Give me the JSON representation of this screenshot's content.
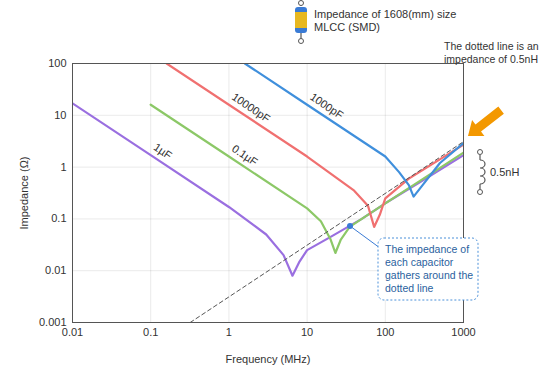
{
  "chart_data": {
    "type": "line",
    "title": "Impedance of 1608(mm) size MLCC (SMD)",
    "xlabel": "Frequency (MHz)",
    "ylabel": "Impedance (Ω)",
    "log": true,
    "grid": true,
    "xlim": [
      0.01,
      1000
    ],
    "ylim": [
      0.001,
      100
    ],
    "xticks": [
      0.01,
      0.1,
      1,
      10,
      100,
      1000
    ],
    "yticks": [
      0.001,
      0.01,
      0.1,
      1,
      10,
      100
    ],
    "series": [
      {
        "name": "1µF",
        "color": "#9a6fe0",
        "line_style": "solid",
        "x": [
          0.01,
          0.1,
          1,
          3,
          5,
          6.5,
          8,
          10,
          20,
          50,
          100,
          300,
          1000
        ],
        "values": [
          17,
          1.7,
          0.17,
          0.05,
          0.02,
          0.008,
          0.015,
          0.025,
          0.045,
          0.1,
          0.2,
          0.55,
          1.7
        ]
      },
      {
        "name": "0.1µF",
        "color": "#8cc867",
        "line_style": "solid",
        "x": [
          0.1,
          1,
          10,
          15,
          20,
          23,
          27,
          35,
          100,
          1000
        ],
        "values": [
          16,
          1.6,
          0.16,
          0.09,
          0.04,
          0.022,
          0.04,
          0.07,
          0.2,
          1.9
        ]
      },
      {
        "name": "10000pF",
        "color": "#f07070",
        "line_style": "solid",
        "x": [
          0.16,
          1,
          10,
          40,
          60,
          72,
          85,
          100,
          200,
          1000
        ],
        "values": [
          100,
          16,
          1.6,
          0.35,
          0.18,
          0.07,
          0.12,
          0.25,
          0.6,
          2.7
        ]
      },
      {
        "name": "1000pF",
        "color": "#3f8fdc",
        "line_style": "solid",
        "x": [
          1.6,
          10,
          100,
          150,
          200,
          230,
          300,
          500,
          1000
        ],
        "values": [
          100,
          16,
          1.6,
          0.8,
          0.45,
          0.27,
          0.45,
          1.2,
          2.9
        ]
      },
      {
        "name": "0.5nH",
        "color": "#555555",
        "line_style": "dashed",
        "x": [
          0.32,
          1000
        ],
        "values": [
          0.001,
          3.1
        ]
      }
    ],
    "annotations": [
      "The dotted line is an impedance of 0.5nH",
      "The impedance of each capacitor gathers around the dotted line"
    ]
  }
}
